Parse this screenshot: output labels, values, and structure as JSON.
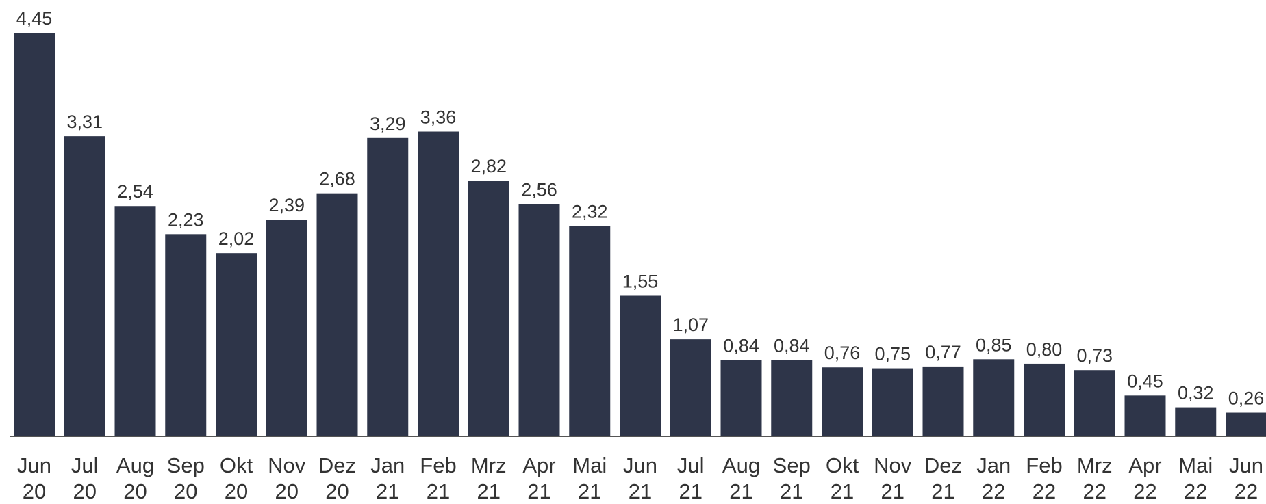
{
  "chart_data": {
    "type": "bar",
    "color": "#2e3549",
    "categories": [
      "Jun 20",
      "Jul 20",
      "Aug 20",
      "Sep 20",
      "Okt 20",
      "Nov 20",
      "Dez 20",
      "Jan 21",
      "Feb 21",
      "Mrz 21",
      "Apr 21",
      "Mai 21",
      "Jun 21",
      "Jul 21",
      "Aug 21",
      "Sep 21",
      "Okt 21",
      "Nov 21",
      "Dez 21",
      "Jan 22",
      "Feb 22",
      "Mrz 22",
      "Apr 22",
      "Mai 22",
      "Jun 22"
    ],
    "values": [
      4.45,
      3.31,
      2.54,
      2.23,
      2.02,
      2.39,
      2.68,
      3.29,
      3.36,
      2.82,
      2.56,
      2.32,
      1.55,
      1.07,
      0.84,
      0.84,
      0.76,
      0.75,
      0.77,
      0.85,
      0.8,
      0.73,
      0.45,
      0.32,
      0.26
    ],
    "value_labels": [
      "4,45",
      "3,31",
      "2,54",
      "2,23",
      "2,02",
      "2,39",
      "2,68",
      "3,29",
      "3,36",
      "2,82",
      "2,56",
      "2,32",
      "1,55",
      "1,07",
      "0,84",
      "0,84",
      "0,76",
      "0,75",
      "0,77",
      "0,85",
      "0,80",
      "0,73",
      "0,45",
      "0,32",
      "0,26"
    ]
  }
}
